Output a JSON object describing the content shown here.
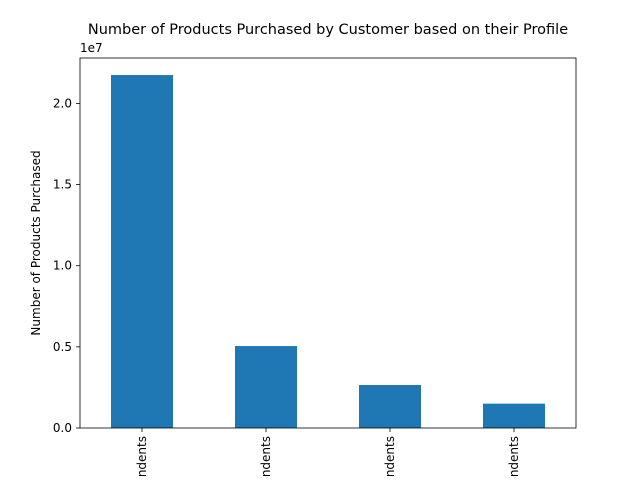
{
  "chart_data": {
    "type": "bar",
    "title": "Number of Products Purchased by Customer based on their Profile",
    "xlabel": "",
    "ylabel": "Number of Products Purchased",
    "y_scale_label": "1e7",
    "categories": [
      "ndents",
      "ndents",
      "ndents",
      "ndents"
    ],
    "values": [
      21750000,
      5050000,
      2650000,
      1500000
    ],
    "ylim": [
      0,
      22800000
    ],
    "yticks": [
      {
        "value": 0,
        "label": "0.0"
      },
      {
        "value": 5000000,
        "label": "0.5"
      },
      {
        "value": 10000000,
        "label": "1.0"
      },
      {
        "value": 15000000,
        "label": "1.5"
      },
      {
        "value": 20000000,
        "label": "2.0"
      }
    ],
    "bar_color": "#1f77b4",
    "grid": false,
    "legend": "none"
  }
}
